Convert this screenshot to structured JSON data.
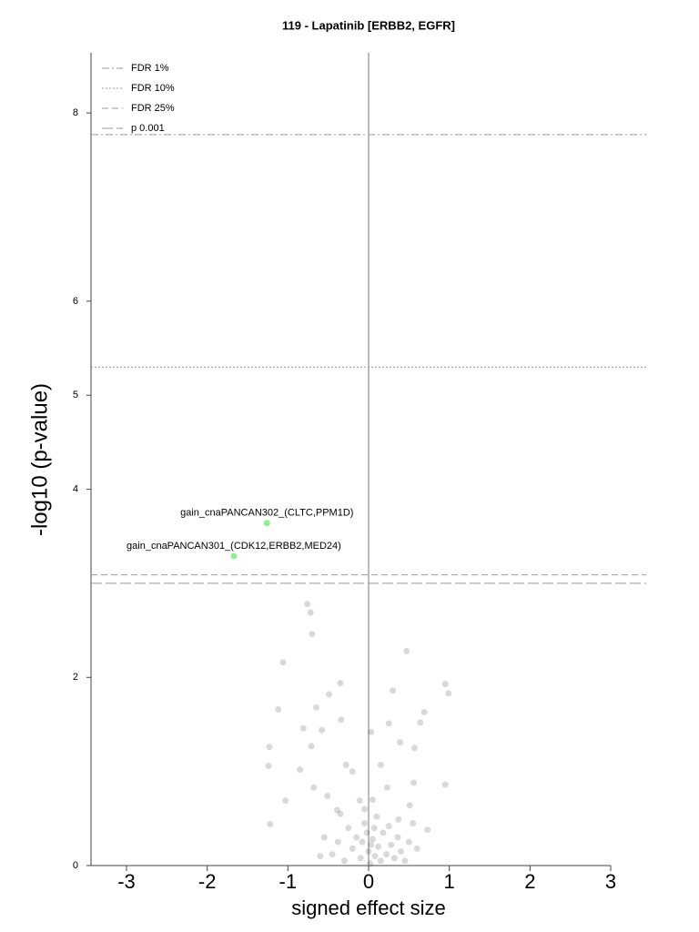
{
  "chart_data": {
    "type": "scatter",
    "title": "119 - Lapatinib [ERBB2, EGFR]",
    "xlabel": "signed effect size",
    "ylabel": "-log10 (p-value)",
    "xlim": [
      -3.44,
      3.44
    ],
    "ylim": [
      0,
      8.64
    ],
    "xticks": [
      -3,
      -2,
      -1,
      0,
      1,
      2,
      3
    ],
    "yticks": [
      0,
      2,
      4,
      5,
      6,
      8
    ],
    "legend": "upper left",
    "thresholds": [
      {
        "name": "FDR 1%",
        "value": 7.77,
        "style": "dashdot"
      },
      {
        "name": "FDR 10%",
        "value": 5.3,
        "style": "dotted"
      },
      {
        "name": "FDR 25%",
        "value": 3.09,
        "style": "dashed"
      },
      {
        "name": "p 0.001",
        "value": 3.0,
        "style": "longdash"
      }
    ],
    "highlights": [
      {
        "name": "gain_cnaPANCAN302_(CLTC,PPM1D)",
        "x": -1.26,
        "y": 3.64,
        "color": "#90ee90"
      },
      {
        "name": "gain_cnaPANCAN301_(CDK12,ERBB2,MED24)",
        "x": -1.67,
        "y": 3.29,
        "color": "#90ee90"
      }
    ],
    "series": [
      {
        "color": "#000000",
        "x": [
          -0.76,
          -0.72,
          -0.7,
          0.47,
          -1.06,
          -0.35,
          0.95,
          0.99,
          -0.49,
          0.3,
          -1.12,
          -0.65,
          0.69,
          -0.34,
          0.03,
          0.25,
          0.64,
          -0.58,
          -0.81,
          -1.23,
          -0.71,
          0.39,
          0.57,
          -1.24,
          -0.85,
          -0.2,
          -0.28,
          0.15,
          0.95,
          -1.03,
          -1.22,
          -0.68,
          -0.51,
          -0.39,
          -0.11,
          0.23,
          0.51,
          0.37,
          0.56,
          0.73,
          -0.45,
          -0.38,
          -0.3,
          -0.25,
          -0.2,
          -0.15,
          -0.1,
          -0.05,
          0.0,
          0.02,
          0.05,
          0.08,
          0.1,
          0.12,
          0.15,
          0.18,
          0.22,
          0.25,
          0.28,
          0.32,
          0.36,
          0.4,
          0.45,
          -0.35,
          -0.55,
          0.5,
          -0.05,
          0.05,
          -0.6,
          0.55,
          0.6,
          -0.02,
          0.03,
          0.07,
          -0.08
        ],
        "values": [
          2.78,
          2.69,
          2.46,
          2.28,
          2.16,
          1.94,
          1.93,
          1.83,
          1.82,
          1.86,
          1.66,
          1.68,
          1.63,
          1.55,
          1.42,
          1.51,
          1.52,
          1.44,
          1.46,
          1.26,
          1.27,
          1.31,
          1.25,
          1.06,
          1.02,
          1.0,
          1.07,
          1.07,
          0.86,
          0.69,
          0.44,
          0.83,
          0.74,
          0.59,
          0.69,
          0.83,
          0.64,
          0.49,
          0.88,
          0.38,
          0.12,
          0.25,
          0.05,
          0.4,
          0.18,
          0.3,
          0.08,
          0.45,
          0.15,
          0.02,
          0.28,
          0.1,
          0.52,
          0.2,
          0.05,
          0.35,
          0.12,
          0.42,
          0.22,
          0.08,
          0.3,
          0.15,
          0.05,
          0.55,
          0.3,
          0.25,
          0.6,
          0.7,
          0.1,
          0.45,
          0.18,
          0.35,
          0.22,
          0.4,
          0.25
        ]
      }
    ]
  }
}
